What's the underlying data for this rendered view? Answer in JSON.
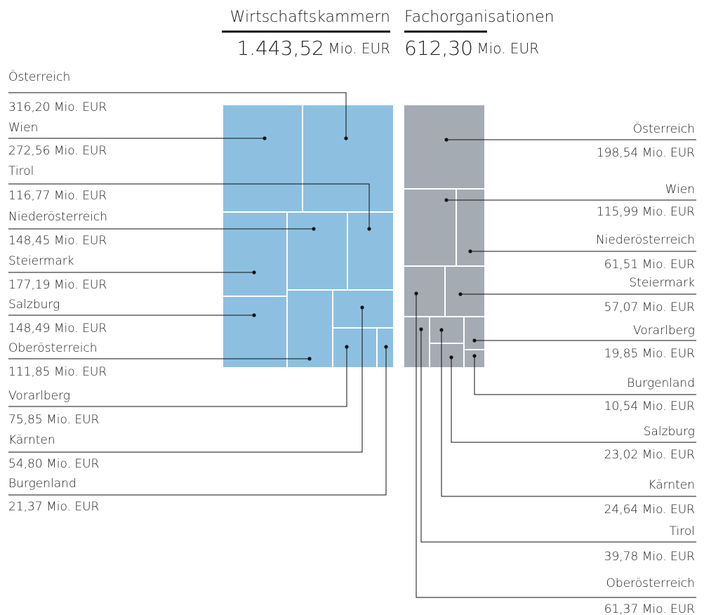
{
  "panels": [
    {
      "title": "Wirtschaftskammern",
      "total": "1.443,52",
      "unit": "Mio. EUR",
      "items": [
        {
          "name": "Österreich",
          "value": "316,20 Mio. EUR"
        },
        {
          "name": "Wien",
          "value": "272,56 Mio. EUR"
        },
        {
          "name": "Tirol",
          "value": "116,77 Mio. EUR"
        },
        {
          "name": "Niederösterreich",
          "value": "148,45 Mio. EUR"
        },
        {
          "name": "Steiermark",
          "value": "177,19 Mio. EUR"
        },
        {
          "name": "Salzburg",
          "value": "148,49 Mio. EUR"
        },
        {
          "name": "Oberösterreich",
          "value": "111,85 Mio. EUR"
        },
        {
          "name": "Vorarlberg",
          "value": "75,85 Mio. EUR"
        },
        {
          "name": "Kärnten",
          "value": "54,80 Mio. EUR"
        },
        {
          "name": "Burgenland",
          "value": "21,37 Mio. EUR"
        }
      ]
    },
    {
      "title": "Fachorganisationen",
      "total": "612,30",
      "unit": "Mio. EUR",
      "items": [
        {
          "name": "Österreich",
          "value": "198,54 Mio. EUR"
        },
        {
          "name": "Wien",
          "value": "115,99 Mio. EUR"
        },
        {
          "name": "Niederösterreich",
          "value": "61,51 Mio. EUR"
        },
        {
          "name": "Steiermark",
          "value": "57,07 Mio. EUR"
        },
        {
          "name": "Vorarlberg",
          "value": "19,85 Mio. EUR"
        },
        {
          "name": "Burgenland",
          "value": "10,54 Mio. EUR"
        },
        {
          "name": "Salzburg",
          "value": "23,02 Mio. EUR"
        },
        {
          "name": "Kärnten",
          "value": "24,64 Mio. EUR"
        },
        {
          "name": "Tirol",
          "value": "39,78 Mio. EUR"
        },
        {
          "name": "Oberösterreich",
          "value": "61,37 Mio. EUR"
        }
      ]
    }
  ]
}
